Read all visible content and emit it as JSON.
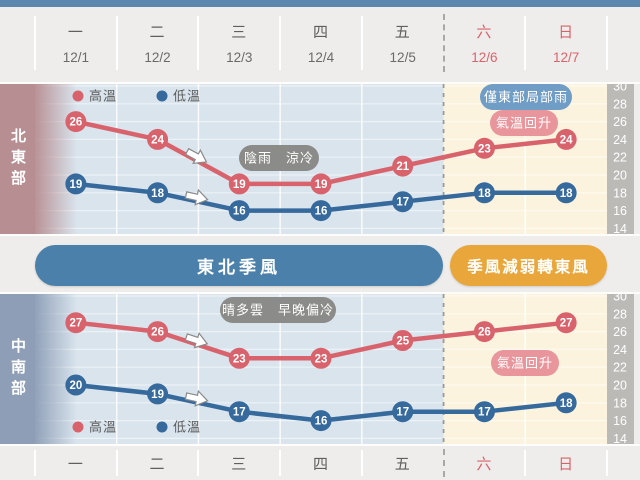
{
  "header": {
    "days": [
      {
        "name": "一",
        "date": "12/1",
        "weekend": false
      },
      {
        "name": "二",
        "date": "12/2",
        "weekend": false
      },
      {
        "name": "三",
        "date": "12/3",
        "weekend": false
      },
      {
        "name": "四",
        "date": "12/4",
        "weekend": false
      },
      {
        "name": "五",
        "date": "12/5",
        "weekend": false
      },
      {
        "name": "六",
        "date": "12/6",
        "weekend": true
      },
      {
        "name": "日",
        "date": "12/7",
        "weekend": true
      }
    ]
  },
  "footer": {
    "days": [
      {
        "name": "一",
        "weekend": false
      },
      {
        "name": "二",
        "weekend": false
      },
      {
        "name": "三",
        "weekend": false
      },
      {
        "name": "四",
        "weekend": false
      },
      {
        "name": "五",
        "weekend": false
      },
      {
        "name": "六",
        "weekend": true
      },
      {
        "name": "日",
        "weekend": true
      }
    ]
  },
  "legend": {
    "high_label": "高溫",
    "low_label": "低溫"
  },
  "banners": [
    {
      "label": "東北季風",
      "color": "#4a80aa"
    },
    {
      "label": "季風減弱轉東風",
      "color": "#e9a63b"
    }
  ],
  "colors": {
    "page_bg": "#efedeb",
    "top_bar": "#5b87ae",
    "weekday_bg": "#d9e4ed",
    "weekend_bg": "#fbf3de",
    "axis_strip": "#b5b4b1",
    "high": "#d8636c",
    "low": "#36699c",
    "dashed_line": "#9b9a98",
    "badge_gray": "#8b8b89",
    "badge_blue": "#6f9dc6",
    "badge_pink": "#e9959c",
    "weekend_text": "#d9636c"
  },
  "chart_data": [
    {
      "type": "line",
      "region_label": "北東部",
      "sidebar_color": "#b78e92",
      "x": [
        "12/1",
        "12/2",
        "12/3",
        "12/4",
        "12/5",
        "12/6",
        "12/7"
      ],
      "series": [
        {
          "name": "高溫",
          "color": "#d8636c",
          "values": [
            26,
            24,
            19,
            19,
            21,
            23,
            24
          ]
        },
        {
          "name": "低溫",
          "color": "#36699c",
          "values": [
            19,
            18,
            16,
            16,
            17,
            18,
            18
          ]
        }
      ],
      "ylim": [
        14,
        30
      ],
      "yticks": [
        30,
        28,
        26,
        24,
        22,
        20,
        18,
        16,
        14
      ],
      "legend_position": "top",
      "annotations": [
        {
          "text": "陰雨　涼冷",
          "style": "gray",
          "x": 279,
          "y": 74
        },
        {
          "text": "僅東部局部雨",
          "style": "blue",
          "x": 526,
          "y": 13
        },
        {
          "text": "氣溫回升",
          "style": "pink",
          "x": 524,
          "y": 39
        }
      ],
      "arrows": [
        {
          "series": 0,
          "between": [
            1,
            2
          ]
        },
        {
          "series": 1,
          "between": [
            1,
            2
          ]
        }
      ]
    },
    {
      "type": "line",
      "region_label": "中南部",
      "sidebar_color": "#8d9eb6",
      "x": [
        "12/1",
        "12/2",
        "12/3",
        "12/4",
        "12/5",
        "12/6",
        "12/7"
      ],
      "series": [
        {
          "name": "高溫",
          "color": "#d8636c",
          "values": [
            27,
            26,
            23,
            23,
            25,
            26,
            27
          ]
        },
        {
          "name": "低溫",
          "color": "#36699c",
          "values": [
            20,
            19,
            17,
            16,
            17,
            17,
            18
          ]
        }
      ],
      "ylim": [
        14,
        30
      ],
      "yticks": [
        30,
        28,
        26,
        24,
        22,
        20,
        18,
        16,
        14
      ],
      "legend_position": "bottom",
      "annotations": [
        {
          "text": "晴多雲　早晚偏冷",
          "style": "gray",
          "x": 278,
          "y": 16
        },
        {
          "text": "氣溫回升",
          "style": "pink",
          "x": 525,
          "y": 69
        }
      ],
      "arrows": [
        {
          "series": 0,
          "between": [
            1,
            2
          ]
        },
        {
          "series": 1,
          "between": [
            1,
            2
          ]
        }
      ]
    }
  ]
}
